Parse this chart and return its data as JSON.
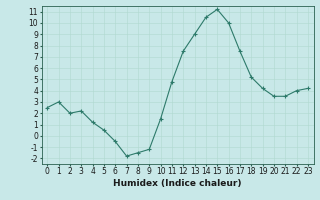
{
  "x": [
    0,
    1,
    2,
    3,
    4,
    5,
    6,
    7,
    8,
    9,
    10,
    11,
    12,
    13,
    14,
    15,
    16,
    17,
    18,
    19,
    20,
    21,
    22,
    23
  ],
  "y": [
    2.5,
    3.0,
    2.0,
    2.2,
    1.2,
    0.5,
    -0.5,
    -1.8,
    -1.5,
    -1.2,
    1.5,
    4.8,
    7.5,
    9.0,
    10.5,
    11.2,
    10.0,
    7.5,
    5.2,
    4.2,
    3.5,
    3.5,
    4.0,
    4.2
  ],
  "line_color": "#2d7a6a",
  "marker": "+",
  "marker_size": 3,
  "bg_color": "#c8e8e8",
  "grid_color_major": "#b0d8d0",
  "grid_color_minor": "#b0d8d0",
  "xlabel": "Humidex (Indice chaleur)",
  "xlim": [
    -0.5,
    23.5
  ],
  "ylim": [
    -2.5,
    11.5
  ],
  "yticks": [
    -2,
    -1,
    0,
    1,
    2,
    3,
    4,
    5,
    6,
    7,
    8,
    9,
    10,
    11
  ],
  "xticks": [
    0,
    1,
    2,
    3,
    4,
    5,
    6,
    7,
    8,
    9,
    10,
    11,
    12,
    13,
    14,
    15,
    16,
    17,
    18,
    19,
    20,
    21,
    22,
    23
  ],
  "font_color": "#1a1a1a",
  "axis_color": "#2a6050",
  "label_fontsize": 6.5,
  "tick_fontsize": 5.5
}
